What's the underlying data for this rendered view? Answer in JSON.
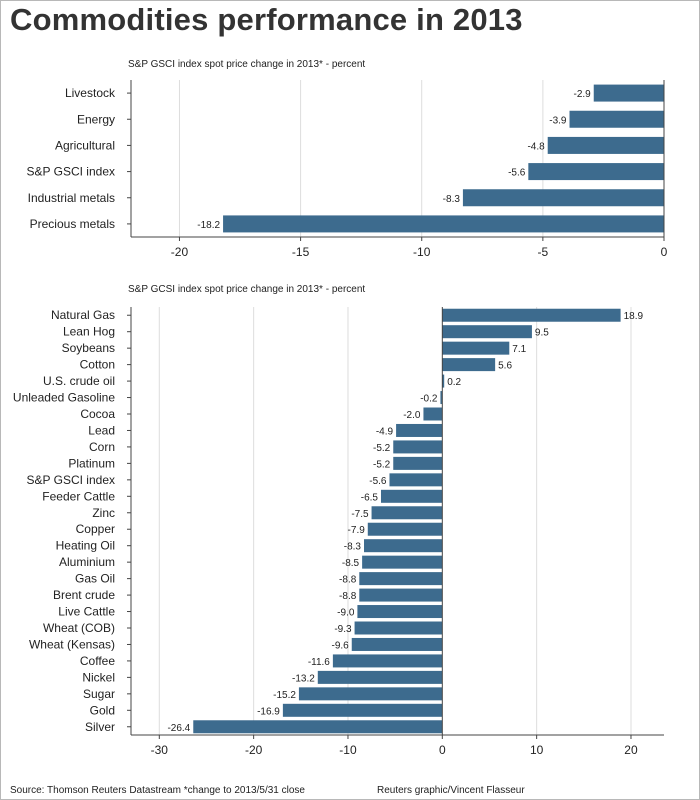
{
  "title": "Commodities performance in 2013",
  "footer": {
    "source": "Source: Thomson Reuters Datastream *change to 2013/5/31 close",
    "credit": "Reuters graphic/Vincent Flasseur"
  },
  "colors": {
    "bar": "#3d6b8e",
    "axis": "#444444",
    "grid": "#dddddd",
    "text": "#222222"
  },
  "chart_data": [
    {
      "type": "bar",
      "orientation": "horizontal",
      "subtitle": "S&P GSCI index spot price change in 2013* - percent",
      "categories": [
        "Livestock",
        "Energy",
        "Agricultural",
        "S&P GSCI index",
        "Industrial metals",
        "Precious metals"
      ],
      "values": [
        -2.9,
        -3.9,
        -4.8,
        -5.6,
        -8.3,
        -18.2
      ],
      "data_labels": [
        "-2.9",
        "-3.9",
        "-4.8",
        "-5.6",
        "-8.3",
        "-18.2"
      ],
      "xlim": [
        -22,
        0
      ],
      "xticks": [
        -20,
        -15,
        -10,
        -5,
        0
      ],
      "grid": true
    },
    {
      "type": "bar",
      "orientation": "horizontal",
      "subtitle": "S&P GCSI index spot price change in 2013* - percent",
      "categories": [
        "Natural Gas",
        "Lean Hog",
        "Soybeans",
        "Cotton",
        "U.S. crude oil",
        "Unleaded Gasoline",
        "Cocoa",
        "Lead",
        "Corn",
        "Platinum",
        "S&P GSCI index",
        "Feeder Cattle",
        "Zinc",
        "Copper",
        "Heating Oil",
        "Aluminium",
        "Gas Oil",
        "Brent crude",
        "Live Cattle",
        "Wheat (COB)",
        "Wheat (Kensas)",
        "Coffee",
        "Nickel",
        "Sugar",
        "Gold",
        "Silver"
      ],
      "values": [
        18.9,
        9.5,
        7.1,
        5.6,
        0.2,
        -0.2,
        -2.0,
        -4.9,
        -5.2,
        -5.2,
        -5.6,
        -6.5,
        -7.5,
        -7.9,
        -8.3,
        -8.5,
        -8.8,
        -8.8,
        -9.0,
        -9.3,
        -9.6,
        -11.6,
        -13.2,
        -15.2,
        -16.9,
        -26.4
      ],
      "data_labels": [
        "18.9",
        "9.5",
        "7.1",
        "5.6",
        "0.2",
        "-0.2",
        "-2.0",
        "-4.9",
        "-5.2",
        "-5.2",
        "-5.6",
        "-6.5",
        "-7.5",
        "-7.9",
        "-8.3",
        "-8.5",
        "-8.8",
        "-8.8",
        "-9.0",
        "-9.3",
        "-9.6",
        "-11.6",
        "-13.2",
        "-15.2",
        "-16.9",
        "-26.4"
      ],
      "xlim": [
        -33,
        23.5
      ],
      "xticks": [
        -30,
        -20,
        -10,
        0,
        10,
        20
      ],
      "grid": true
    }
  ]
}
